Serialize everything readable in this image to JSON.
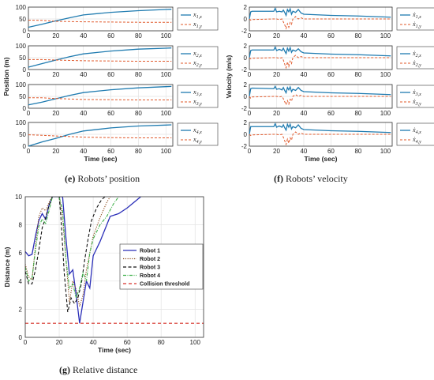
{
  "captions": {
    "e_letter": "(e)",
    "e_text": "Robots’ position",
    "f_letter": "(f)",
    "f_text": "Robots’ velocity",
    "g_letter": "(g)",
    "g_text": "Relative distance"
  },
  "chart_data": [
    {
      "id": "position",
      "type": "line",
      "ylabel": "Position (m)",
      "xlabel": "Time (sec)",
      "xlim": [
        0,
        105
      ],
      "xticks": [
        "0",
        "20",
        "40",
        "60",
        "80",
        "100"
      ],
      "subplots": [
        {
          "ylim": [
            0,
            100
          ],
          "yticks": [
            "0",
            "50",
            "100"
          ],
          "series": [
            {
              "name": "x1,x",
              "x": [
                0,
                10,
                20,
                30,
                40,
                60,
                80,
                100,
                104
              ],
              "y": [
                15,
                28,
                42,
                55,
                67,
                78,
                85,
                90,
                91
              ]
            },
            {
              "name": "x1,y",
              "x": [
                0,
                10,
                20,
                40,
                60,
                80,
                104
              ],
              "y": [
                45,
                44,
                40,
                38,
                37,
                36,
                36
              ]
            }
          ],
          "legend": [
            "x",
            "1,x",
            "x",
            "1,y"
          ]
        },
        {
          "ylim": [
            0,
            100
          ],
          "yticks": [
            "0",
            "50",
            "100"
          ],
          "series": [
            {
              "name": "x2,x",
              "x": [
                0,
                10,
                20,
                30,
                40,
                60,
                80,
                100,
                104
              ],
              "y": [
                10,
                25,
                40,
                54,
                66,
                78,
                86,
                90,
                91
              ]
            },
            {
              "name": "x2,y",
              "x": [
                0,
                10,
                20,
                40,
                60,
                80,
                104
              ],
              "y": [
                42,
                42,
                40,
                37,
                36,
                35,
                35
              ]
            }
          ],
          "legend": [
            "x",
            "2,x",
            "x",
            "2,y"
          ]
        },
        {
          "ylim": [
            0,
            100
          ],
          "yticks": [
            "0",
            "50",
            "100"
          ],
          "series": [
            {
              "name": "x3,x",
              "x": [
                0,
                10,
                20,
                30,
                40,
                60,
                80,
                100,
                104
              ],
              "y": [
                14,
                26,
                40,
                54,
                66,
                78,
                86,
                91,
                92
              ]
            },
            {
              "name": "x3,y",
              "x": [
                0,
                10,
                20,
                40,
                60,
                80,
                104
              ],
              "y": [
                44,
                44,
                41,
                37,
                36,
                35,
                35
              ]
            }
          ],
          "legend": [
            "x",
            "3,x",
            "x",
            "3,y"
          ]
        },
        {
          "ylim": [
            0,
            100
          ],
          "yticks": [
            "0",
            "50",
            "100"
          ],
          "series": [
            {
              "name": "x4,x",
              "x": [
                0,
                10,
                20,
                30,
                40,
                60,
                80,
                100,
                104
              ],
              "y": [
                0,
                18,
                33,
                50,
                64,
                77,
                85,
                89,
                90
              ]
            },
            {
              "name": "x4,y",
              "x": [
                0,
                10,
                20,
                40,
                60,
                80,
                104
              ],
              "y": [
                48,
                46,
                43,
                38,
                36,
                35,
                35
              ]
            }
          ],
          "legend": [
            "x",
            "4,x",
            "x",
            "4,y"
          ]
        }
      ]
    },
    {
      "id": "velocity",
      "type": "line",
      "ylabel": "Velocity (m/s)",
      "xlabel": "Time (sec)",
      "xlim": [
        0,
        105
      ],
      "xticks": [
        "0",
        "20",
        "40",
        "60",
        "80",
        "100"
      ],
      "subplots": [
        {
          "ylim": [
            -2,
            2
          ],
          "yticks": [
            "-2",
            "0",
            "2"
          ],
          "series": [
            {
              "name": "ẋ1,x",
              "x": [
                0,
                1,
                2,
                18,
                19,
                20,
                22,
                24,
                25,
                26,
                27,
                28,
                29,
                30,
                31,
                32,
                34,
                36,
                38,
                40,
                50,
                60,
                80,
                104
              ],
              "y": [
                0,
                1.2,
                1.3,
                1.3,
                1.8,
                1.2,
                1.3,
                1.2,
                1.5,
                1.1,
                0.6,
                1.6,
                1.2,
                1.7,
                0.8,
                1.3,
                1.1,
                1.6,
                1.0,
                0.8,
                0.7,
                0.6,
                0.5,
                0.3
              ]
            },
            {
              "name": "ẋ1,y",
              "x": [
                0,
                1,
                2,
                18,
                20,
                22,
                24,
                25,
                26,
                27,
                28,
                29,
                30,
                31,
                32,
                34,
                36,
                38,
                40,
                60,
                104
              ],
              "y": [
                0,
                -0.2,
                -0.1,
                0,
                0,
                -0.1,
                0,
                -0.5,
                -1.0,
                -1.6,
                -0.8,
                -1.4,
                -0.6,
                -0.9,
                0,
                0.4,
                0,
                0.2,
                0,
                0,
                0
              ]
            }
          ],
          "legend": [
            "ẋ",
            "1,x",
            "ẋ",
            "1,y"
          ]
        },
        {
          "ylim": [
            -2,
            2
          ],
          "yticks": [
            "-2",
            "0",
            "2"
          ],
          "series": [
            {
              "name": "ẋ2,x",
              "x": [
                0,
                1,
                2,
                18,
                19,
                20,
                22,
                24,
                25,
                26,
                27,
                28,
                29,
                30,
                31,
                32,
                34,
                36,
                38,
                40,
                50,
                60,
                80,
                104
              ],
              "y": [
                0,
                1.2,
                1.3,
                1.3,
                1.8,
                1.2,
                1.4,
                1.2,
                1.6,
                1.1,
                0.7,
                1.6,
                1.1,
                1.7,
                0.9,
                1.3,
                1.1,
                1.5,
                1.0,
                0.8,
                0.7,
                0.6,
                0.5,
                0.3
              ]
            },
            {
              "name": "ẋ2,y",
              "x": [
                0,
                1,
                2,
                18,
                20,
                22,
                24,
                25,
                26,
                27,
                28,
                29,
                30,
                31,
                32,
                34,
                36,
                38,
                40,
                60,
                104
              ],
              "y": [
                0,
                -0.2,
                -0.1,
                0,
                0,
                -0.1,
                0,
                -0.4,
                -1.1,
                -1.7,
                -0.7,
                -1.5,
                -0.6,
                -1.0,
                0,
                0.4,
                0,
                0.2,
                0,
                0,
                0
              ]
            }
          ],
          "legend": [
            "ẋ",
            "2,x",
            "ẋ",
            "2,y"
          ]
        },
        {
          "ylim": [
            -2,
            2
          ],
          "yticks": [
            "-2",
            "0",
            "2"
          ],
          "series": [
            {
              "name": "ẋ3,x",
              "x": [
                0,
                1,
                2,
                18,
                19,
                20,
                22,
                24,
                25,
                26,
                27,
                28,
                29,
                30,
                31,
                32,
                34,
                36,
                38,
                40,
                50,
                60,
                80,
                104
              ],
              "y": [
                0,
                1.3,
                1.4,
                1.3,
                1.7,
                1.2,
                1.3,
                1.1,
                1.5,
                1.0,
                0.6,
                1.5,
                1.1,
                1.6,
                0.8,
                1.2,
                1.0,
                1.5,
                1.0,
                0.8,
                0.7,
                0.6,
                0.5,
                0.3
              ]
            },
            {
              "name": "ẋ3,y",
              "x": [
                0,
                1,
                2,
                18,
                20,
                22,
                24,
                25,
                26,
                27,
                28,
                29,
                30,
                31,
                32,
                34,
                36,
                38,
                40,
                60,
                104
              ],
              "y": [
                0,
                -0.3,
                -0.1,
                0,
                0,
                -0.1,
                0,
                -0.4,
                -0.9,
                -1.4,
                -0.7,
                -1.3,
                -0.5,
                -0.8,
                0,
                0.3,
                0,
                0.2,
                0,
                0,
                0
              ]
            }
          ],
          "legend": [
            "ẋ",
            "3,x",
            "ẋ",
            "3,y"
          ]
        },
        {
          "ylim": [
            -2,
            2
          ],
          "yticks": [
            "-2",
            "0",
            "2"
          ],
          "series": [
            {
              "name": "ẋ4,x",
              "x": [
                0,
                1,
                2,
                18,
                19,
                20,
                22,
                24,
                25,
                26,
                27,
                28,
                29,
                30,
                31,
                32,
                34,
                36,
                38,
                40,
                50,
                60,
                80,
                104
              ],
              "y": [
                0,
                1.3,
                1.3,
                1.3,
                1.8,
                1.2,
                1.4,
                1.2,
                1.6,
                1.1,
                0.7,
                1.7,
                1.2,
                1.7,
                0.9,
                1.3,
                1.1,
                1.6,
                1.0,
                0.8,
                0.7,
                0.6,
                0.5,
                0.3
              ]
            },
            {
              "name": "ẋ4,y",
              "x": [
                0,
                1,
                2,
                18,
                20,
                22,
                24,
                25,
                26,
                27,
                28,
                29,
                30,
                31,
                32,
                34,
                36,
                38,
                40,
                60,
                104
              ],
              "y": [
                0,
                -0.2,
                -0.1,
                0,
                0,
                -0.1,
                0,
                -0.5,
                -1.1,
                -1.7,
                -0.8,
                -1.5,
                -0.6,
                -1.0,
                0,
                0.4,
                0,
                0.2,
                0,
                0,
                0
              ]
            }
          ],
          "legend": [
            "ẋ",
            "4,x",
            "ẋ",
            "4,y"
          ]
        }
      ]
    },
    {
      "id": "distance",
      "type": "line",
      "ylabel": "Distance (m)",
      "xlabel": "Time (sec)",
      "xlim": [
        0,
        105
      ],
      "ylim": [
        0,
        10
      ],
      "xticks": [
        "0",
        "20",
        "40",
        "60",
        "80",
        "100"
      ],
      "yticks": [
        "0",
        "2",
        "4",
        "6",
        "8",
        "10"
      ],
      "legend_position": "right",
      "series": [
        {
          "name": "Robot 1",
          "color": "#2b2fb8",
          "dash": "",
          "x": [
            0,
            2,
            4,
            6,
            8,
            10,
            12,
            14,
            16,
            18,
            20,
            22,
            24,
            26,
            28,
            30,
            32,
            34,
            36,
            38,
            40,
            44,
            50,
            55,
            60,
            65,
            68
          ],
          "y": [
            6.1,
            5.8,
            5.9,
            7.2,
            8.3,
            8.8,
            8.4,
            9.4,
            10,
            10,
            10,
            10,
            7.0,
            4.5,
            4.8,
            3.0,
            1.0,
            2.5,
            4.0,
            3.5,
            5.8,
            6.8,
            8.6,
            8.8,
            9.2,
            9.7,
            10
          ]
        },
        {
          "name": "Robot 2",
          "color": "#8a4a1a",
          "dash": "1.2,1.6",
          "x": [
            0,
            2,
            4,
            6,
            8,
            10,
            12,
            14,
            16,
            18,
            20,
            22,
            24,
            26,
            28,
            30,
            32,
            34,
            36,
            38,
            40,
            44,
            48,
            50
          ],
          "y": [
            5.2,
            4.3,
            4.1,
            6.5,
            8.6,
            9.2,
            9.0,
            9.6,
            10,
            10,
            10,
            8.5,
            5.5,
            2.5,
            4.0,
            3.4,
            2.2,
            3.0,
            4.8,
            6.0,
            7.2,
            8.5,
            9.6,
            10
          ]
        },
        {
          "name": "Robot 3",
          "color": "#111111",
          "dash": "4,2.5",
          "x": [
            0,
            2,
            4,
            6,
            8,
            10,
            12,
            14,
            16,
            18,
            20,
            21,
            23,
            25,
            27,
            29,
            31,
            33,
            35,
            37,
            39,
            42,
            45,
            47
          ],
          "y": [
            4.7,
            3.8,
            3.8,
            4.8,
            6.2,
            7.8,
            8.5,
            9.4,
            10,
            10,
            10,
            8.5,
            4.5,
            1.8,
            2.8,
            2.4,
            2.8,
            3.8,
            5.5,
            7.0,
            8.3,
            9.2,
            9.8,
            10
          ]
        },
        {
          "name": "Robot 4",
          "color": "#3fb14a",
          "dash": "4,1.5,1,1.5",
          "x": [
            0,
            2,
            4,
            6,
            8,
            10,
            12,
            14,
            16,
            18,
            20,
            22,
            24,
            26,
            28,
            30,
            32,
            34,
            36,
            38,
            40,
            44,
            48,
            52,
            55
          ],
          "y": [
            5.0,
            4.0,
            4.2,
            6.2,
            7.9,
            8.4,
            8.1,
            9.0,
            10,
            10,
            10,
            9.0,
            5.5,
            3.5,
            3.8,
            2.8,
            3.5,
            4.6,
            4.0,
            6.0,
            7.0,
            8.0,
            8.6,
            9.5,
            10
          ]
        },
        {
          "name": "Collision threshold",
          "color": "#d6322a",
          "dash": "4,3",
          "x": [
            0,
            105
          ],
          "y": [
            1,
            1
          ]
        }
      ]
    }
  ]
}
